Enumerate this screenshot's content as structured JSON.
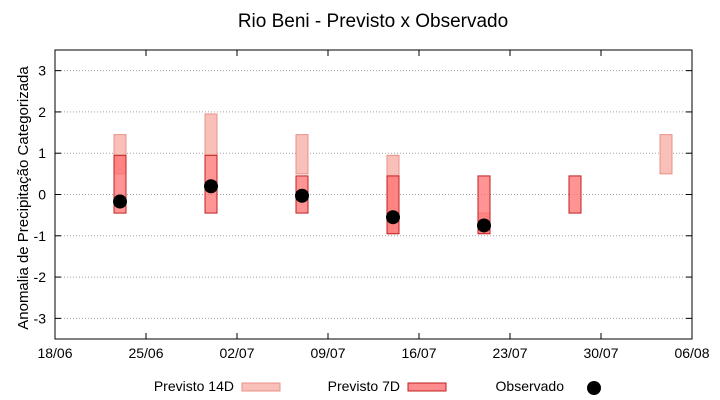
{
  "chart_data": {
    "type": "scatter",
    "title": "Rio Beni - Previsto x Observado",
    "xlabel": "",
    "ylabel": "Anomalia de Precipitação Categorizada",
    "ylim": [
      -3.5,
      3.5
    ],
    "yticks": [
      -3,
      -2,
      -1,
      0,
      1,
      2,
      3
    ],
    "xlim": [
      "2024-06-18",
      "2024-08-06"
    ],
    "xtick_labels": [
      "18/06",
      "25/06",
      "02/07",
      "09/07",
      "16/07",
      "23/07",
      "30/07",
      "06/08"
    ],
    "grid": true,
    "legend_position": "bottom",
    "series": [
      {
        "name": "Previsto 14D",
        "kind": "range",
        "color": "#f8c0b8",
        "edge": "#e89088",
        "values": [
          {
            "date": "2024-06-23",
            "low": 0.5,
            "high": 1.45
          },
          {
            "date": "2024-06-30",
            "low": 0.95,
            "high": 1.95
          },
          {
            "date": "2024-07-07",
            "low": 0.5,
            "high": 1.45
          },
          {
            "date": "2024-07-14",
            "low": -0.95,
            "high": 0.95
          },
          {
            "date": "2024-07-21",
            "low": -0.95,
            "high": -0.45
          },
          {
            "date": "2024-08-04",
            "low": 0.5,
            "high": 1.45
          }
        ]
      },
      {
        "name": "Previsto 7D",
        "kind": "range",
        "color": "#ff7070",
        "edge": "#c02020",
        "values": [
          {
            "date": "2024-06-23",
            "low": -0.45,
            "high": 0.95
          },
          {
            "date": "2024-06-30",
            "low": -0.45,
            "high": 0.95
          },
          {
            "date": "2024-07-07",
            "low": -0.45,
            "high": 0.45
          },
          {
            "date": "2024-07-14",
            "low": -0.95,
            "high": 0.45
          },
          {
            "date": "2024-07-21",
            "low": -0.95,
            "high": 0.45
          },
          {
            "date": "2024-07-28",
            "low": -0.45,
            "high": 0.45
          }
        ]
      },
      {
        "name": "Observado",
        "kind": "point",
        "color": "#000000",
        "values": [
          {
            "date": "2024-06-23",
            "y": -0.17
          },
          {
            "date": "2024-06-30",
            "y": 0.2
          },
          {
            "date": "2024-07-07",
            "y": -0.03
          },
          {
            "date": "2024-07-14",
            "y": -0.55
          },
          {
            "date": "2024-07-21",
            "y": -0.75
          }
        ]
      }
    ]
  }
}
